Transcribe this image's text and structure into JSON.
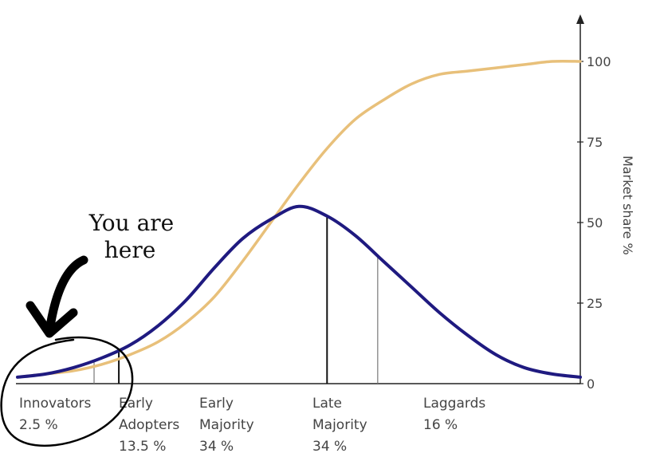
{
  "chart_data": {
    "type": "line",
    "title": "",
    "ylabel": "Market share %",
    "yticks": [
      0,
      25,
      50,
      75,
      100
    ],
    "ylim": [
      0,
      100
    ],
    "series": [
      {
        "kind": "adoption-curve",
        "color": "#1f1a80",
        "x": [
          0,
          5,
          10,
          15,
          20,
          25,
          30,
          35,
          40,
          45,
          50,
          55,
          60,
          65,
          70,
          75,
          80,
          85,
          90,
          95,
          100
        ],
        "y": [
          2,
          3,
          5,
          8,
          12,
          18,
          26,
          36,
          45,
          51,
          55,
          52,
          46,
          38,
          30,
          22,
          15,
          9,
          5,
          3,
          2
        ]
      },
      {
        "kind": "market-share",
        "color": "#e8c07a",
        "x": [
          0,
          5,
          10,
          15,
          20,
          25,
          30,
          35,
          40,
          45,
          50,
          55,
          60,
          65,
          70,
          75,
          80,
          85,
          90,
          95,
          100
        ],
        "y": [
          2,
          3,
          4,
          6,
          9,
          13,
          19,
          27,
          38,
          50,
          62,
          73,
          82,
          88,
          93,
          96,
          97,
          98,
          99,
          100,
          100
        ]
      }
    ],
    "segments": [
      {
        "lines": [
          "Innovators",
          "2.5 %"
        ]
      },
      {
        "lines": [
          "Early",
          "Adopters",
          "13.5 %"
        ]
      },
      {
        "lines": [
          "Early",
          "Majority",
          "34 %"
        ]
      },
      {
        "lines": [
          "Late",
          "Majority",
          "34 %"
        ]
      },
      {
        "lines": [
          "Laggards",
          "16 %"
        ]
      }
    ],
    "dividers": [
      13.6,
      18,
      55,
      64
    ],
    "annotation": {
      "lines": [
        "You are",
        "here"
      ],
      "target": "Innovators"
    },
    "colors": {
      "bell": "#1f1a80",
      "s_curve": "#e8c07a",
      "axis": "#222222",
      "text": "#444444"
    }
  }
}
